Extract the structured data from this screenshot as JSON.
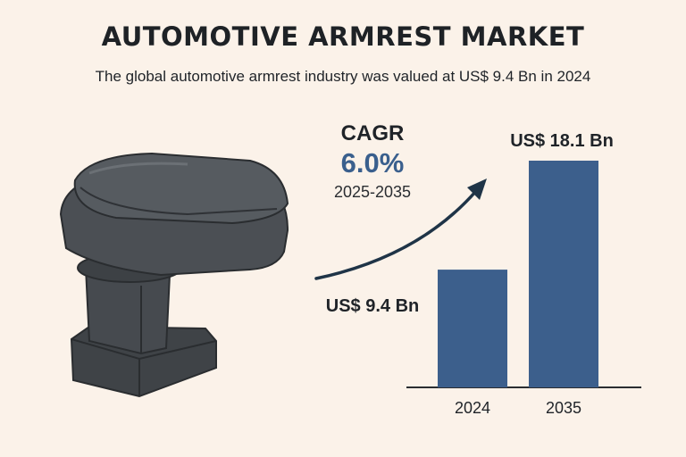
{
  "title": "AUTOMOTIVE ARMREST MARKET",
  "subtitle": "The global automotive armrest industry was valued at US$ 9.4 Bn in 2024",
  "cagr": {
    "label": "CAGR",
    "value": "6.0%",
    "period": "2025-2035"
  },
  "colors": {
    "background": "#fbf2e9",
    "bar": "#3c5f8c",
    "accent": "#3a5f8d",
    "arrow": "#1f3447"
  },
  "chart_data": {
    "type": "bar",
    "categories": [
      "2024",
      "2035"
    ],
    "values": [
      9.4,
      18.1
    ],
    "data_labels": [
      "US$ 9.4 Bn",
      "US$ 18.1 Bn"
    ],
    "grid": false,
    "legend": "none"
  }
}
